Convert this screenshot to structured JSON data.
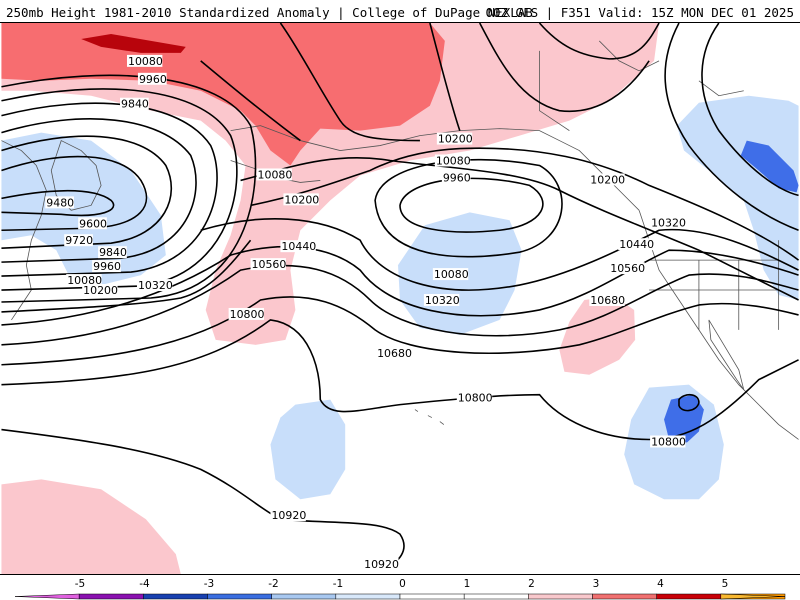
{
  "header": {
    "title": "250mb Height 1981-2010 Standardized Anomaly | College of DuPage NEXLAB",
    "valid": "00Z GFS | F351 Valid: 15Z MON DEC 01 2025"
  },
  "colorbar": {
    "ticks": [
      "-5",
      "-4",
      "-3",
      "-2",
      "-1",
      "0",
      "1",
      "2",
      "3",
      "4",
      "5"
    ],
    "colors": [
      "#e060e0",
      "#8a10b0",
      "#1840b0",
      "#3a6ee0",
      "#a8c8f0",
      "#d8e8fa",
      "#ffffff",
      "#ffffff",
      "#f8c8cc",
      "#f07070",
      "#c80008",
      "#ff9800",
      "#f8b830"
    ]
  },
  "colors": {
    "anom_pos1": "#fbc7cd",
    "anom_pos2": "#f76d70",
    "anom_pos3": "#b8040c",
    "anom_neg1": "#c8defa",
    "anom_neg2": "#3f6ee8",
    "contour": "#000000",
    "coast": "#555555"
  },
  "contour_labels": [
    {
      "id": "l1",
      "text": "10080"
    },
    {
      "id": "l2",
      "text": "9960"
    },
    {
      "id": "l3",
      "text": "9840"
    },
    {
      "id": "l4",
      "text": "10080"
    },
    {
      "id": "l5",
      "text": "10200"
    },
    {
      "id": "l6",
      "text": "9480"
    },
    {
      "id": "l7",
      "text": "9600"
    },
    {
      "id": "l8",
      "text": "9720"
    },
    {
      "id": "l9",
      "text": "9840"
    },
    {
      "id": "l10",
      "text": "9960"
    },
    {
      "id": "l11",
      "text": "10080"
    },
    {
      "id": "l12",
      "text": "10200"
    },
    {
      "id": "l13",
      "text": "10320"
    },
    {
      "id": "l14",
      "text": "10440"
    },
    {
      "id": "l15",
      "text": "10560"
    },
    {
      "id": "l16",
      "text": "10800"
    },
    {
      "id": "l17",
      "text": "10200"
    },
    {
      "id": "l18",
      "text": "10080"
    },
    {
      "id": "l19",
      "text": "9960"
    },
    {
      "id": "l20",
      "text": "10080"
    },
    {
      "id": "l21",
      "text": "10320"
    },
    {
      "id": "l22",
      "text": "10680"
    },
    {
      "id": "l23",
      "text": "10200"
    },
    {
      "id": "l24",
      "text": "10320"
    },
    {
      "id": "l25",
      "text": "10440"
    },
    {
      "id": "l26",
      "text": "10560"
    },
    {
      "id": "l27",
      "text": "10680"
    },
    {
      "id": "l28",
      "text": "10800"
    },
    {
      "id": "l29",
      "text": "10800"
    },
    {
      "id": "l30",
      "text": "10920"
    },
    {
      "id": "l31",
      "text": "10920"
    }
  ]
}
